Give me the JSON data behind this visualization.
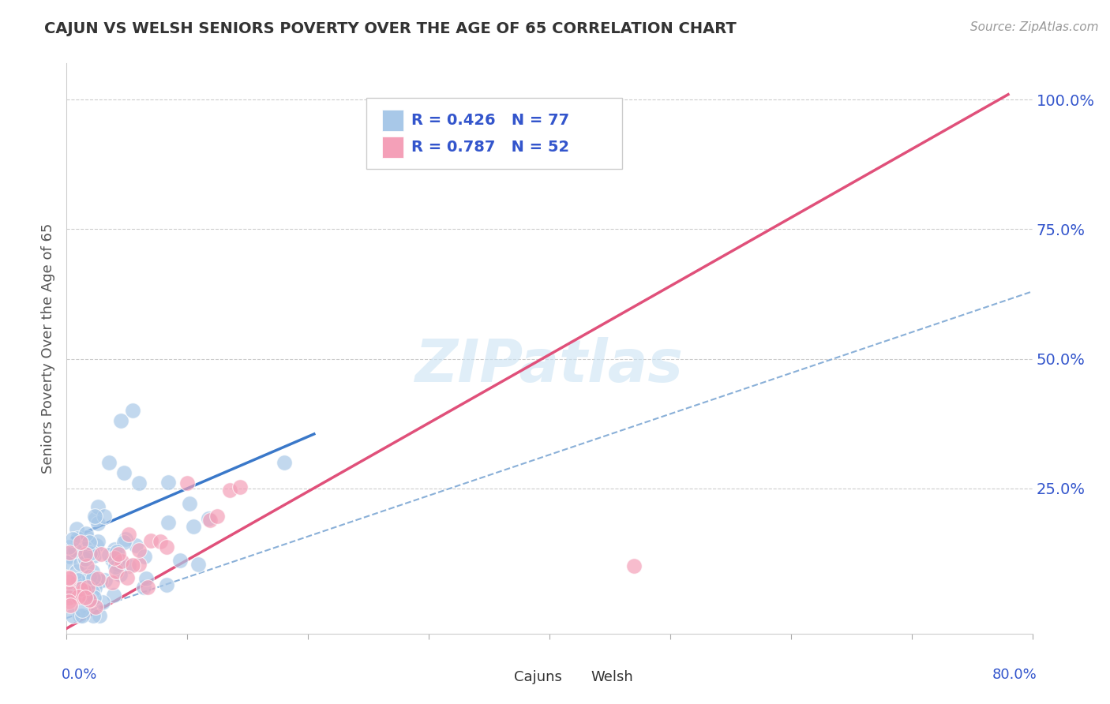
{
  "title": "CAJUN VS WELSH SENIORS POVERTY OVER THE AGE OF 65 CORRELATION CHART",
  "source_text": "Source: ZipAtlas.com",
  "ylabel": "Seniors Poverty Over the Age of 65",
  "cajun_R": 0.426,
  "cajun_N": 77,
  "welsh_R": 0.787,
  "welsh_N": 52,
  "cajun_color": "#a8c8e8",
  "welsh_color": "#f4a0b8",
  "cajun_line_color": "#3a78c9",
  "welsh_line_color": "#e0507a",
  "dash_line_color": "#8ab0d8",
  "legend_text_color": "#3355cc",
  "title_color": "#333333",
  "background_color": "#ffffff",
  "grid_color": "#cccccc",
  "xlim": [
    0.0,
    0.8
  ],
  "ylim": [
    -0.03,
    1.07
  ],
  "yticks": [
    0.25,
    0.5,
    0.75,
    1.0
  ],
  "ytick_labels": [
    "25.0%",
    "50.0%",
    "75.0%",
    "100.0%"
  ]
}
